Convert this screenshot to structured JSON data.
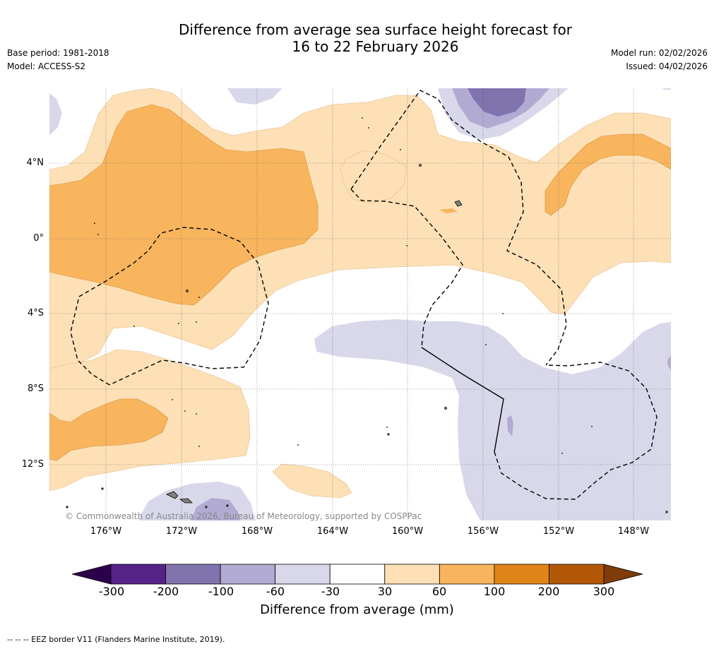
{
  "header": {
    "title_line1": "Difference from average sea surface height forecast for",
    "title_line2": "16 to 22 February 2026",
    "base_period": "Base period: 1981-2018",
    "model": "Model: ACCESS-S2",
    "model_run": "Model run: 02/02/2026",
    "issued": "Issued: 04/02/2026"
  },
  "map": {
    "latitudes": [
      "4°N",
      "0°",
      "4°S",
      "8°S",
      "12°S"
    ],
    "longitudes": [
      "176°W",
      "172°W",
      "168°W",
      "164°W",
      "160°W",
      "156°W",
      "152°W",
      "148°W"
    ],
    "copyright": "© Commonwealth of Australia 2026, Bureau of Meteorology, supported by COSPPac",
    "colors": {
      "pos_30_60": "#fde0b6",
      "pos_60_100": "#f8b55e",
      "neg_30_60": "#d8d8ea",
      "neg_60_100": "#b1abd3",
      "neg_100_200": "#8073ae",
      "land": "#808080",
      "eez": "#000000"
    }
  },
  "colorbar": {
    "ticks": [
      "-300",
      "-200",
      "-100",
      "-60",
      "-30",
      "30",
      "60",
      "100",
      "200",
      "300"
    ],
    "colors": [
      "#552388",
      "#8073ae",
      "#b1abd3",
      "#d8d8ea",
      "#ffffff",
      "#fde0b6",
      "#f8b55e",
      "#e08418",
      "#b35806"
    ],
    "low_extend_color": "#2d004b",
    "high_extend_color": "#7f3b08",
    "label": "Difference from average (mm)"
  },
  "footer": {
    "eez_note": "--  --  -- EEZ border V11 (Flanders Marine Institute, 2019)."
  }
}
